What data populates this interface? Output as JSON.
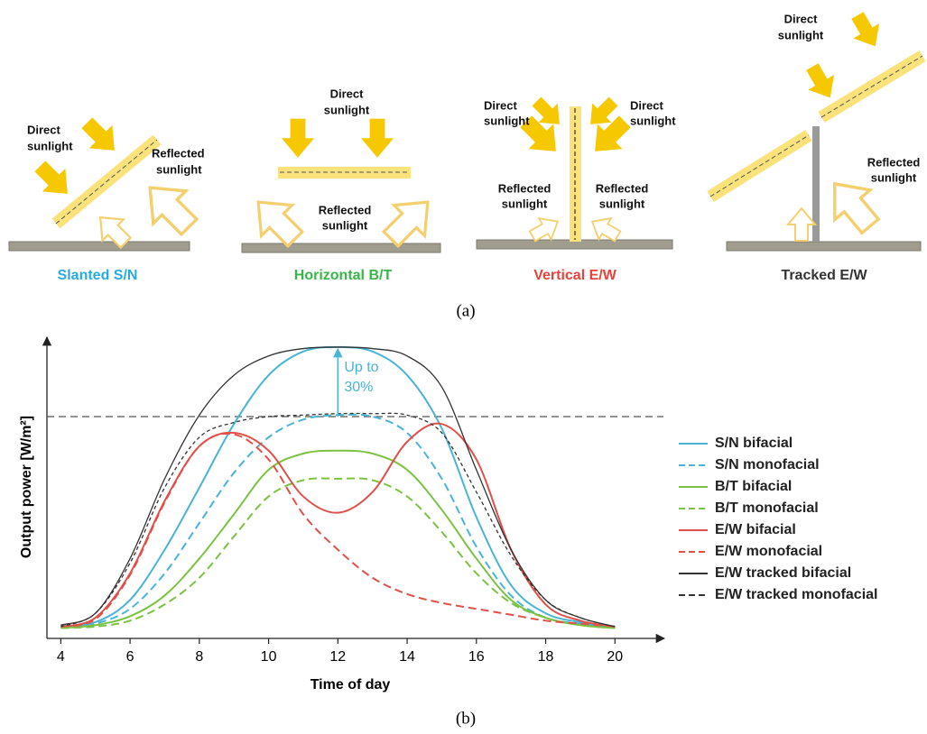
{
  "figure_a": {
    "caption": "(a)",
    "panels": [
      {
        "title": "Slanted S/N",
        "color": "#29abe2",
        "labels": [
          [
            "Direct",
            "sunlight"
          ],
          [
            "Reflected",
            "sunlight"
          ]
        ]
      },
      {
        "title": "Horizontal B/T",
        "color": "#39b54a",
        "labels": [
          [
            "Direct",
            "sunlight"
          ],
          [
            "Reflected",
            "sunlight"
          ]
        ]
      },
      {
        "title": "Vertical E/W",
        "color": "#e8423a",
        "labels": [
          [
            "Direct",
            "sunlight"
          ],
          [
            "Direct",
            "sunlight"
          ],
          [
            "Reflected",
            "sunlight"
          ],
          [
            "Reflected",
            "sunlight"
          ]
        ]
      },
      {
        "title": "Tracked E/W",
        "color": "#333333",
        "labels": [
          [
            "Direct",
            "sunlight"
          ],
          [
            "Reflected",
            "sunlight"
          ]
        ]
      }
    ]
  },
  "caption_b": "(b)",
  "chart_data": {
    "type": "line",
    "x_label": "Time of day",
    "y_label": "Output power [W/m²]",
    "x": [
      4,
      5,
      6,
      7,
      8,
      9,
      10,
      11,
      12,
      13,
      14,
      15,
      16,
      17,
      18,
      19,
      20
    ],
    "xlim": [
      3.6,
      21.4
    ],
    "xticks": [
      4,
      6,
      8,
      10,
      12,
      14,
      16,
      18,
      20
    ],
    "ylim": [
      0,
      100
    ],
    "reference_line": 75,
    "annotation": [
      "Up to",
      "30%"
    ],
    "annotation_color": "#4ab3d8",
    "series": [
      {
        "name": "S/N bifacial",
        "color": "#4ab3d8",
        "dash": false,
        "values": [
          4,
          5.5,
          13,
          30,
          51,
          72.5,
          89,
          97,
          98.5,
          97,
          89,
          71,
          41,
          18,
          8.5,
          5.5,
          4
        ]
      },
      {
        "name": "S/N monofacial",
        "color": "#4ab3d8",
        "dash": true,
        "values": [
          3.5,
          5,
          10,
          22,
          39,
          56,
          68,
          74,
          75.5,
          75,
          69.5,
          54,
          31,
          14.5,
          7,
          5,
          3.5
        ]
      },
      {
        "name": "B/T bifacial",
        "color": "#7cc242",
        "dash": false,
        "values": [
          3.5,
          4.5,
          7.5,
          14.5,
          27,
          42,
          57,
          62.5,
          63.5,
          62.5,
          57,
          43.5,
          27,
          13,
          7,
          4.5,
          3.5
        ]
      },
      {
        "name": "B/T monofacial",
        "color": "#7cc242",
        "dash": true,
        "values": [
          3.5,
          4,
          6,
          11.5,
          20.5,
          34.5,
          48,
          53.5,
          54,
          53.5,
          48,
          36,
          22,
          12,
          7,
          4.5,
          3.5
        ]
      },
      {
        "name": "E/W bifacial",
        "color": "#e0504a",
        "dash": false,
        "values": [
          4,
          7,
          22,
          46.5,
          65,
          69.5,
          63.5,
          48,
          42.5,
          49.5,
          66.5,
          72.5,
          60.5,
          30,
          11.5,
          6,
          4
        ]
      },
      {
        "name": "E/W monofacial",
        "color": "#e0504a",
        "dash": true,
        "values": [
          4,
          6.5,
          21.5,
          46,
          65,
          69,
          60.5,
          42,
          30,
          20.5,
          15,
          12,
          10,
          8,
          6,
          5,
          4
        ]
      },
      {
        "name": "E/W tracked bifacial",
        "color": "#333333",
        "dash": false,
        "values": [
          4.5,
          8.5,
          27,
          54,
          75.5,
          89,
          95.5,
          98,
          98.5,
          98,
          95.5,
          85,
          57,
          30,
          13,
          7,
          4
        ]
      },
      {
        "name": "E/W tracked monofacial",
        "color": "#333333",
        "dash": true,
        "values": [
          4,
          8.5,
          25.5,
          51,
          68,
          73,
          75,
          75.5,
          76,
          76,
          75.5,
          69.5,
          49.5,
          28,
          13,
          7,
          4
        ]
      }
    ]
  }
}
